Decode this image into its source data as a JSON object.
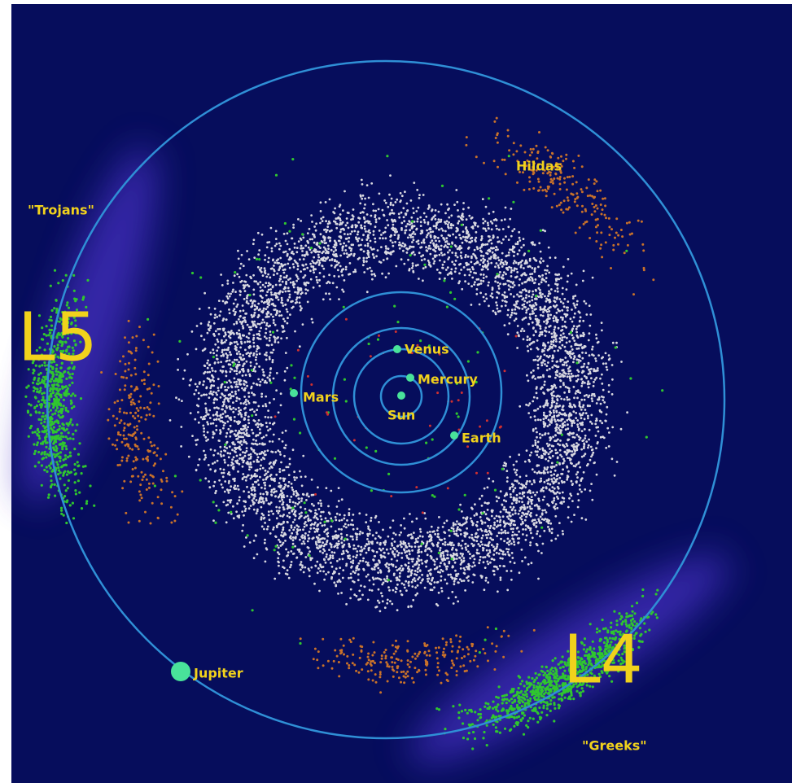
{
  "labels": {
    "trojans": "\"Trojans\"",
    "l5": "L5",
    "hildas": "Hildas",
    "venus": "Venus",
    "mercury": "Mercury",
    "mars": "Mars",
    "sun": "Sun",
    "earth": "Earth",
    "jupiter": "Jupiter",
    "l4": "L4",
    "greeks": "\"Greeks\""
  }
}
